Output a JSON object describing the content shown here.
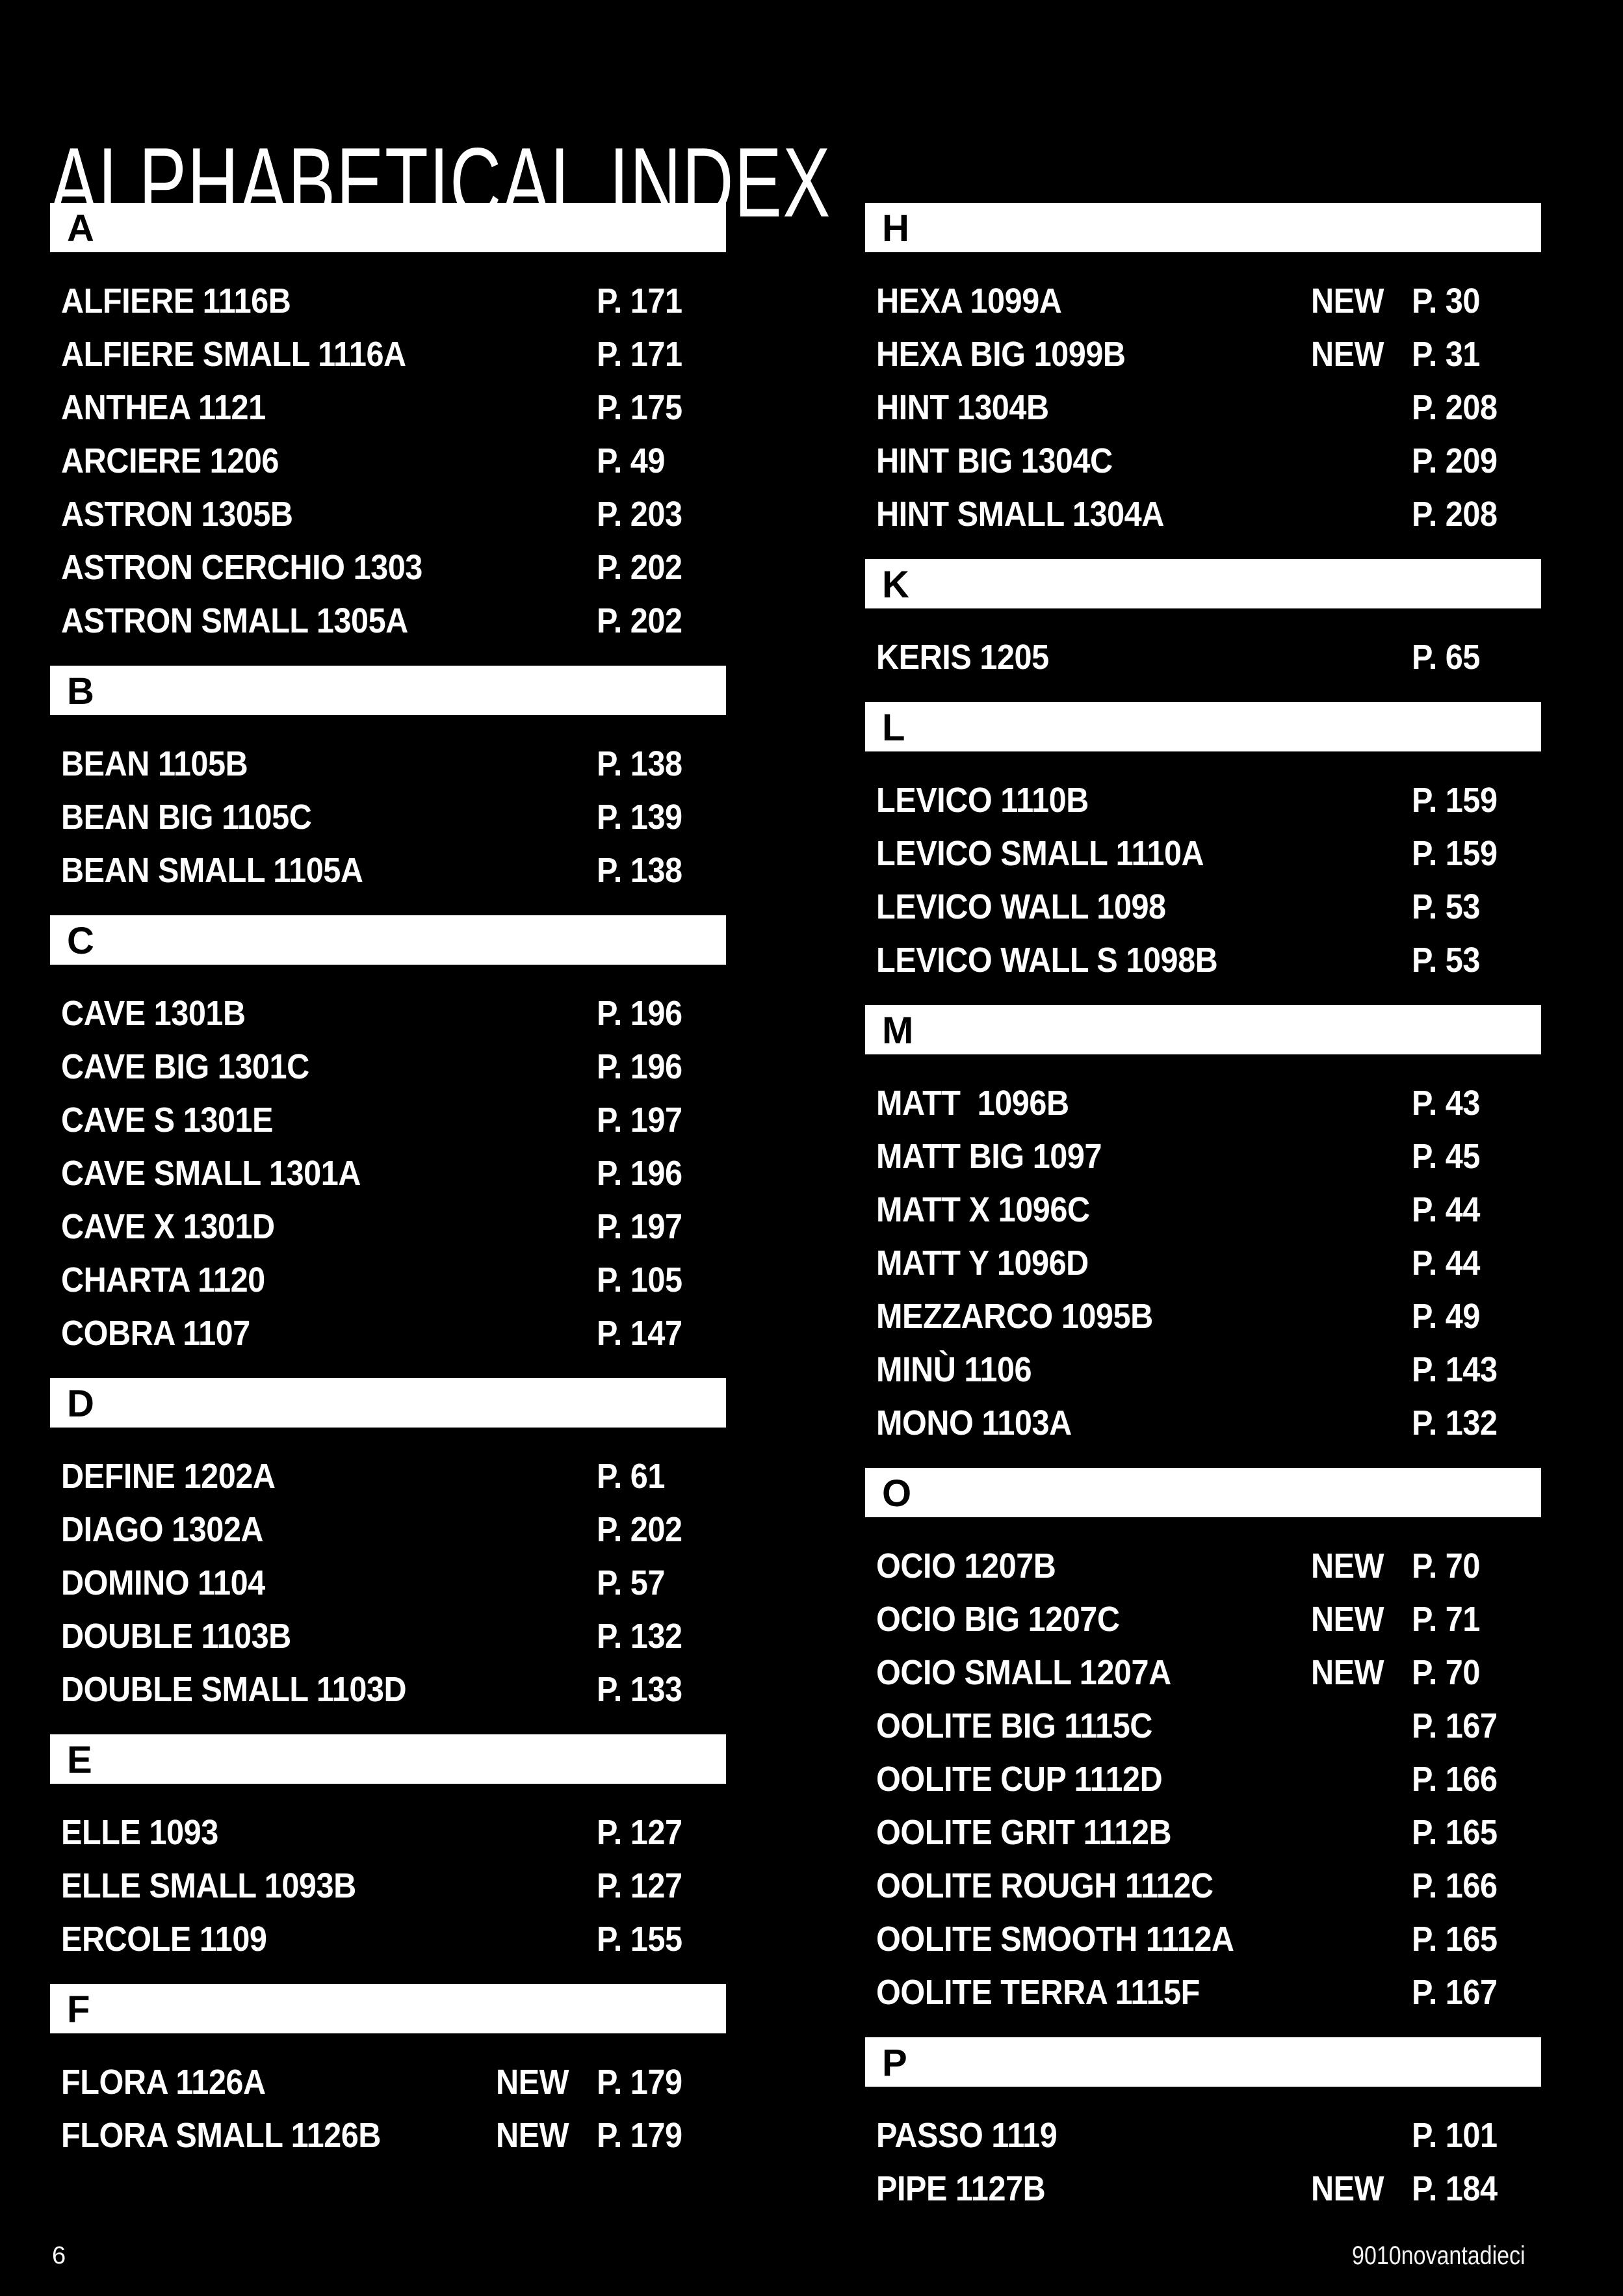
{
  "page": {
    "title": "ALPHABETICAL INDEX",
    "page_number": "6",
    "brand": "9010novantadieci",
    "colors": {
      "background": "#000000",
      "section_bar_background": "#ffffff",
      "section_bar_text": "#000000",
      "entry_text": "#ffffff"
    }
  },
  "columns": [
    {
      "sections": [
        {
          "letter": "A",
          "entries": [
            {
              "name": "ALFIERE 1116B",
              "page": "P. 171"
            },
            {
              "name": "ALFIERE SMALL 1116A",
              "page": "P. 171"
            },
            {
              "name": "ANTHEA 1121",
              "page": "P. 175"
            },
            {
              "name": "ARCIERE 1206",
              "page": "P. 49"
            },
            {
              "name": "ASTRON 1305B",
              "page": "P. 203"
            },
            {
              "name": "ASTRON CERCHIO 1303",
              "page": "P. 202"
            },
            {
              "name": "ASTRON SMALL 1305A",
              "page": "P. 202"
            }
          ]
        },
        {
          "letter": "B",
          "entries": [
            {
              "name": "BEAN 1105B",
              "page": "P. 138"
            },
            {
              "name": "BEAN BIG 1105C",
              "page": "P. 139"
            },
            {
              "name": "BEAN SMALL 1105A",
              "page": "P. 138"
            }
          ]
        },
        {
          "letter": "C",
          "entries": [
            {
              "name": "CAVE 1301B",
              "page": "P. 196"
            },
            {
              "name": "CAVE BIG 1301C",
              "page": "P. 196"
            },
            {
              "name": "CAVE S 1301E",
              "page": "P. 197"
            },
            {
              "name": "CAVE SMALL 1301A",
              "page": "P. 196"
            },
            {
              "name": "CAVE X 1301D",
              "page": "P. 197"
            },
            {
              "name": "CHARTA 1120",
              "page": "P. 105"
            },
            {
              "name": "COBRA 1107",
              "page": "P. 147"
            }
          ]
        },
        {
          "letter": "D",
          "entries": [
            {
              "name": "DEFINE 1202A",
              "page": "P. 61"
            },
            {
              "name": "DIAGO 1302A",
              "page": "P. 202"
            },
            {
              "name": "DOMINO 1104",
              "page": "P. 57"
            },
            {
              "name": "DOUBLE 1103B",
              "page": "P. 132"
            },
            {
              "name": "DOUBLE SMALL 1103D",
              "page": "P. 133"
            }
          ]
        },
        {
          "letter": "E",
          "entries": [
            {
              "name": "ELLE 1093",
              "page": "P. 127"
            },
            {
              "name": "ELLE SMALL 1093B",
              "page": "P. 127"
            },
            {
              "name": "ERCOLE 1109",
              "page": "P. 155"
            }
          ]
        },
        {
          "letter": "F",
          "entries": [
            {
              "name": "FLORA 1126A",
              "badge": "NEW",
              "page": "P. 179"
            },
            {
              "name": "FLORA SMALL 1126B",
              "badge": "NEW",
              "page": "P. 179"
            }
          ]
        }
      ]
    },
    {
      "sections": [
        {
          "letter": "H",
          "entries": [
            {
              "name": "HEXA 1099A",
              "badge": "NEW",
              "page": "P. 30"
            },
            {
              "name": "HEXA BIG 1099B",
              "badge": "NEW",
              "page": "P. 31"
            },
            {
              "name": "HINT 1304B",
              "page": "P. 208"
            },
            {
              "name": "HINT BIG 1304C",
              "page": "P. 209"
            },
            {
              "name": "HINT SMALL 1304A",
              "page": "P. 208"
            }
          ]
        },
        {
          "letter": "K",
          "entries": [
            {
              "name": "KERIS 1205",
              "page": "P. 65"
            }
          ]
        },
        {
          "letter": "L",
          "entries": [
            {
              "name": "LEVICO 1110B",
              "page": "P. 159"
            },
            {
              "name": "LEVICO SMALL 1110A",
              "page": "P. 159"
            },
            {
              "name": "LEVICO WALL 1098",
              "page": "P. 53"
            },
            {
              "name": "LEVICO WALL S 1098B",
              "page": "P. 53"
            }
          ]
        },
        {
          "letter": "M",
          "entries": [
            {
              "name": "MATT  1096B",
              "page": "P. 43"
            },
            {
              "name": "MATT BIG 1097",
              "page": "P. 45"
            },
            {
              "name": "MATT X 1096C",
              "page": "P. 44"
            },
            {
              "name": "MATT Y 1096D",
              "page": "P. 44"
            },
            {
              "name": "MEZZARCO 1095B",
              "page": "P. 49"
            },
            {
              "name": "MINÙ 1106",
              "page": "P. 143"
            },
            {
              "name": "MONO 1103A",
              "page": "P. 132"
            }
          ]
        },
        {
          "letter": "O",
          "entries": [
            {
              "name": "OCIO 1207B",
              "badge": "NEW",
              "page": "P. 70"
            },
            {
              "name": "OCIO BIG 1207C",
              "badge": "NEW",
              "page": "P. 71"
            },
            {
              "name": "OCIO SMALL 1207A",
              "badge": "NEW",
              "page": "P. 70"
            },
            {
              "name": "OOLITE BIG 1115C",
              "page": "P. 167"
            },
            {
              "name": "OOLITE CUP 1112D",
              "page": "P. 166"
            },
            {
              "name": "OOLITE GRIT 1112B",
              "page": "P. 165"
            },
            {
              "name": "OOLITE ROUGH 1112C",
              "page": "P. 166"
            },
            {
              "name": "OOLITE SMOOTH 1112A",
              "page": "P. 165"
            },
            {
              "name": "OOLITE TERRA 1115F",
              "page": "P. 167"
            }
          ]
        },
        {
          "letter": "P",
          "entries": [
            {
              "name": "PASSO 1119",
              "page": "P. 101"
            },
            {
              "name": "PIPE 1127B",
              "badge": "NEW",
              "page": "P. 184"
            }
          ]
        }
      ]
    }
  ]
}
